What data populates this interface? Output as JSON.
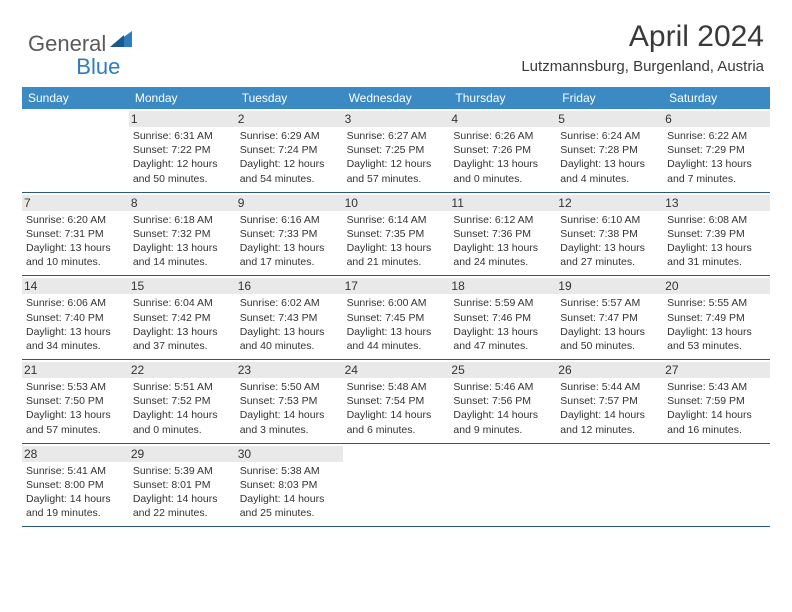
{
  "brand": {
    "part1": "General",
    "part2": "Blue"
  },
  "title": "April 2024",
  "location": "Lutzmannsburg, Burgenland, Austria",
  "colors": {
    "header_bg": "#3b8ac4",
    "divider": "#2c5a7c",
    "daynum_bg": "#e9e9e9",
    "logo_accent": "#2f7bbf",
    "text": "#333333"
  },
  "typography": {
    "title_fontsize": 30,
    "location_fontsize": 15,
    "dow_fontsize": 12,
    "daynum_fontsize": 12,
    "body_fontsize": 10.5
  },
  "days_of_week": [
    "Sunday",
    "Monday",
    "Tuesday",
    "Wednesday",
    "Thursday",
    "Friday",
    "Saturday"
  ],
  "weeks": [
    [
      {
        "num": "",
        "sunrise": "",
        "sunset": "",
        "daylight": ""
      },
      {
        "num": "1",
        "sunrise": "Sunrise: 6:31 AM",
        "sunset": "Sunset: 7:22 PM",
        "daylight": "Daylight: 12 hours and 50 minutes."
      },
      {
        "num": "2",
        "sunrise": "Sunrise: 6:29 AM",
        "sunset": "Sunset: 7:24 PM",
        "daylight": "Daylight: 12 hours and 54 minutes."
      },
      {
        "num": "3",
        "sunrise": "Sunrise: 6:27 AM",
        "sunset": "Sunset: 7:25 PM",
        "daylight": "Daylight: 12 hours and 57 minutes."
      },
      {
        "num": "4",
        "sunrise": "Sunrise: 6:26 AM",
        "sunset": "Sunset: 7:26 PM",
        "daylight": "Daylight: 13 hours and 0 minutes."
      },
      {
        "num": "5",
        "sunrise": "Sunrise: 6:24 AM",
        "sunset": "Sunset: 7:28 PM",
        "daylight": "Daylight: 13 hours and 4 minutes."
      },
      {
        "num": "6",
        "sunrise": "Sunrise: 6:22 AM",
        "sunset": "Sunset: 7:29 PM",
        "daylight": "Daylight: 13 hours and 7 minutes."
      }
    ],
    [
      {
        "num": "7",
        "sunrise": "Sunrise: 6:20 AM",
        "sunset": "Sunset: 7:31 PM",
        "daylight": "Daylight: 13 hours and 10 minutes."
      },
      {
        "num": "8",
        "sunrise": "Sunrise: 6:18 AM",
        "sunset": "Sunset: 7:32 PM",
        "daylight": "Daylight: 13 hours and 14 minutes."
      },
      {
        "num": "9",
        "sunrise": "Sunrise: 6:16 AM",
        "sunset": "Sunset: 7:33 PM",
        "daylight": "Daylight: 13 hours and 17 minutes."
      },
      {
        "num": "10",
        "sunrise": "Sunrise: 6:14 AM",
        "sunset": "Sunset: 7:35 PM",
        "daylight": "Daylight: 13 hours and 21 minutes."
      },
      {
        "num": "11",
        "sunrise": "Sunrise: 6:12 AM",
        "sunset": "Sunset: 7:36 PM",
        "daylight": "Daylight: 13 hours and 24 minutes."
      },
      {
        "num": "12",
        "sunrise": "Sunrise: 6:10 AM",
        "sunset": "Sunset: 7:38 PM",
        "daylight": "Daylight: 13 hours and 27 minutes."
      },
      {
        "num": "13",
        "sunrise": "Sunrise: 6:08 AM",
        "sunset": "Sunset: 7:39 PM",
        "daylight": "Daylight: 13 hours and 31 minutes."
      }
    ],
    [
      {
        "num": "14",
        "sunrise": "Sunrise: 6:06 AM",
        "sunset": "Sunset: 7:40 PM",
        "daylight": "Daylight: 13 hours and 34 minutes."
      },
      {
        "num": "15",
        "sunrise": "Sunrise: 6:04 AM",
        "sunset": "Sunset: 7:42 PM",
        "daylight": "Daylight: 13 hours and 37 minutes."
      },
      {
        "num": "16",
        "sunrise": "Sunrise: 6:02 AM",
        "sunset": "Sunset: 7:43 PM",
        "daylight": "Daylight: 13 hours and 40 minutes."
      },
      {
        "num": "17",
        "sunrise": "Sunrise: 6:00 AM",
        "sunset": "Sunset: 7:45 PM",
        "daylight": "Daylight: 13 hours and 44 minutes."
      },
      {
        "num": "18",
        "sunrise": "Sunrise: 5:59 AM",
        "sunset": "Sunset: 7:46 PM",
        "daylight": "Daylight: 13 hours and 47 minutes."
      },
      {
        "num": "19",
        "sunrise": "Sunrise: 5:57 AM",
        "sunset": "Sunset: 7:47 PM",
        "daylight": "Daylight: 13 hours and 50 minutes."
      },
      {
        "num": "20",
        "sunrise": "Sunrise: 5:55 AM",
        "sunset": "Sunset: 7:49 PM",
        "daylight": "Daylight: 13 hours and 53 minutes."
      }
    ],
    [
      {
        "num": "21",
        "sunrise": "Sunrise: 5:53 AM",
        "sunset": "Sunset: 7:50 PM",
        "daylight": "Daylight: 13 hours and 57 minutes."
      },
      {
        "num": "22",
        "sunrise": "Sunrise: 5:51 AM",
        "sunset": "Sunset: 7:52 PM",
        "daylight": "Daylight: 14 hours and 0 minutes."
      },
      {
        "num": "23",
        "sunrise": "Sunrise: 5:50 AM",
        "sunset": "Sunset: 7:53 PM",
        "daylight": "Daylight: 14 hours and 3 minutes."
      },
      {
        "num": "24",
        "sunrise": "Sunrise: 5:48 AM",
        "sunset": "Sunset: 7:54 PM",
        "daylight": "Daylight: 14 hours and 6 minutes."
      },
      {
        "num": "25",
        "sunrise": "Sunrise: 5:46 AM",
        "sunset": "Sunset: 7:56 PM",
        "daylight": "Daylight: 14 hours and 9 minutes."
      },
      {
        "num": "26",
        "sunrise": "Sunrise: 5:44 AM",
        "sunset": "Sunset: 7:57 PM",
        "daylight": "Daylight: 14 hours and 12 minutes."
      },
      {
        "num": "27",
        "sunrise": "Sunrise: 5:43 AM",
        "sunset": "Sunset: 7:59 PM",
        "daylight": "Daylight: 14 hours and 16 minutes."
      }
    ],
    [
      {
        "num": "28",
        "sunrise": "Sunrise: 5:41 AM",
        "sunset": "Sunset: 8:00 PM",
        "daylight": "Daylight: 14 hours and 19 minutes."
      },
      {
        "num": "29",
        "sunrise": "Sunrise: 5:39 AM",
        "sunset": "Sunset: 8:01 PM",
        "daylight": "Daylight: 14 hours and 22 minutes."
      },
      {
        "num": "30",
        "sunrise": "Sunrise: 5:38 AM",
        "sunset": "Sunset: 8:03 PM",
        "daylight": "Daylight: 14 hours and 25 minutes."
      },
      {
        "num": "",
        "sunrise": "",
        "sunset": "",
        "daylight": ""
      },
      {
        "num": "",
        "sunrise": "",
        "sunset": "",
        "daylight": ""
      },
      {
        "num": "",
        "sunrise": "",
        "sunset": "",
        "daylight": ""
      },
      {
        "num": "",
        "sunrise": "",
        "sunset": "",
        "daylight": ""
      }
    ]
  ]
}
